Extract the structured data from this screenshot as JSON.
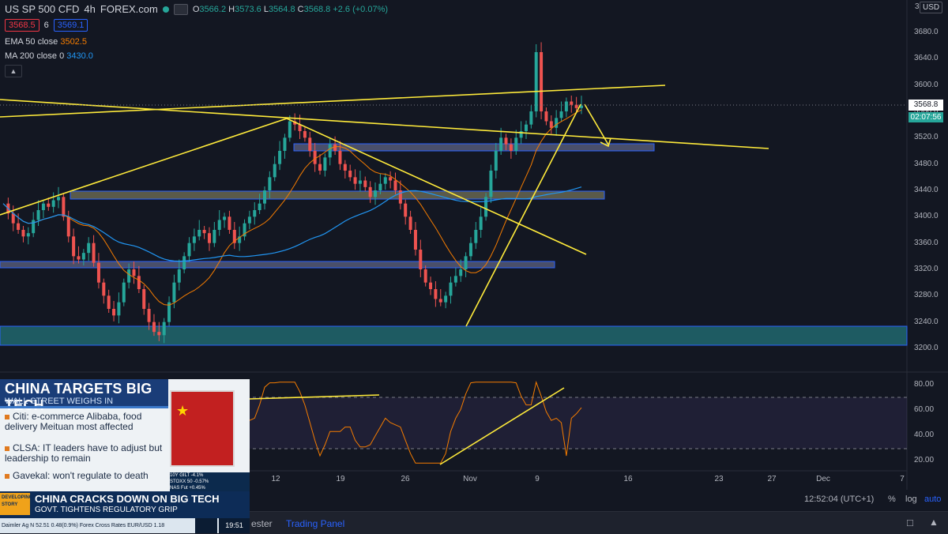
{
  "header": {
    "symbol": "US SP 500 CFD",
    "timeframe": "4h",
    "source": "FOREX.com",
    "ohlc": {
      "o": "3566.2",
      "h": "3573.6",
      "l": "3564.8",
      "c": "3568.8",
      "change": "+2.6 (+0.07%)"
    }
  },
  "quote": {
    "bid": "3568.5",
    "spread": "6",
    "ask": "3569.1"
  },
  "indicators": {
    "ema_label": "EMA 50 close",
    "ema_value": "3502.5",
    "ma_label": "MA 200 close 0",
    "ma_value": "3430.0"
  },
  "currency_button": "USD",
  "price_axis": {
    "ticks": [
      "3680.0",
      "3640.0",
      "3600.0",
      "3560.0",
      "3520.0",
      "3480.0",
      "3440.0",
      "3400.0",
      "3360.0",
      "3320.0",
      "3280.0",
      "3240.0",
      "3200.0"
    ],
    "top_label": "3",
    "last_price": "3568.8",
    "countdown": "02:07:56"
  },
  "rsi_axis": {
    "ticks": [
      "80.00",
      "60.00",
      "40.00",
      "20.00"
    ]
  },
  "date_axis": {
    "ticks": [
      "12",
      "19",
      "26",
      "Nov",
      "9",
      "16",
      "23",
      "27",
      "Dec",
      "7"
    ]
  },
  "bottom_bar": {
    "clock": "12:52:04 (UTC+1)",
    "pct_label": "%",
    "log_label": "log",
    "auto_label": "auto"
  },
  "tabs": {
    "tester": "ester",
    "trading": "Trading Panel"
  },
  "colors": {
    "bg": "#131722",
    "up": "#26a69a",
    "down": "#ef5350",
    "ema": "#f57c00",
    "ma": "#2196f3",
    "trendline": "#ffeb3b",
    "rsi": "#f57c00"
  },
  "video_overlay": {
    "headline": "CHINA TARGETS BIG TECH",
    "subheadline": "WALL STREET WEIGHS IN",
    "bullets": [
      "Citi: e-commerce Alibaba, food delivery Meituan most affected",
      "CLSA: IT leaders have to adjust but leadership to remain",
      "Gavekal: won't regulate to death"
    ],
    "mini_ticker": [
      "10Y GILT -4.1%",
      "STOXX 50 -0.57%",
      "NAS Fut +0.45%"
    ],
    "developing": "DEVELOPING STORY",
    "lower_title": "CHINA CRACKS DOWN ON BIG TECH",
    "lower_sub": "GOVT. TIGHTENS REGULATORY GRIP",
    "strip": "Daimler Ag N 52.51  0.48(0.9%)  Forex Cross Rates  EUR/USD 1.18",
    "time": "19:51"
  },
  "chart_data": {
    "type": "candlestick",
    "title": "US SP 500 CFD, 4h, FOREX.com",
    "x_axis_ticks": [
      "12",
      "19",
      "26",
      "Nov",
      "9",
      "16",
      "23",
      "27",
      "Dec",
      "7"
    ],
    "ylim": [
      3190,
      3700
    ],
    "close_path": [
      3420,
      3405,
      3390,
      3380,
      3370,
      3375,
      3395,
      3410,
      3420,
      3415,
      3425,
      3430,
      3400,
      3370,
      3340,
      3335,
      3345,
      3360,
      3330,
      3300,
      3280,
      3260,
      3250,
      3270,
      3300,
      3320,
      3310,
      3290,
      3260,
      3240,
      3225,
      3220,
      3240,
      3270,
      3300,
      3320,
      3340,
      3360,
      3370,
      3380,
      3375,
      3360,
      3380,
      3395,
      3400,
      3380,
      3360,
      3370,
      3390,
      3400,
      3410,
      3420,
      3440,
      3460,
      3480,
      3500,
      3520,
      3545,
      3540,
      3530,
      3520,
      3500,
      3480,
      3470,
      3490,
      3510,
      3500,
      3480,
      3470,
      3460,
      3450,
      3455,
      3445,
      3430,
      3440,
      3450,
      3460,
      3455,
      3440,
      3420,
      3400,
      3380,
      3350,
      3320,
      3300,
      3290,
      3275,
      3270,
      3280,
      3300,
      3310,
      3320,
      3340,
      3360,
      3380,
      3400,
      3430,
      3470,
      3500,
      3520,
      3510,
      3500,
      3520,
      3530,
      3540,
      3560,
      3650,
      3560,
      3545,
      3535,
      3550,
      3560,
      3575,
      3570,
      3565,
      3568.8
    ],
    "last": 3568.8,
    "ema50_last": 3502.5,
    "ma200_last": 3430.0,
    "rsi_ticks": [
      80,
      60,
      40,
      20
    ]
  }
}
